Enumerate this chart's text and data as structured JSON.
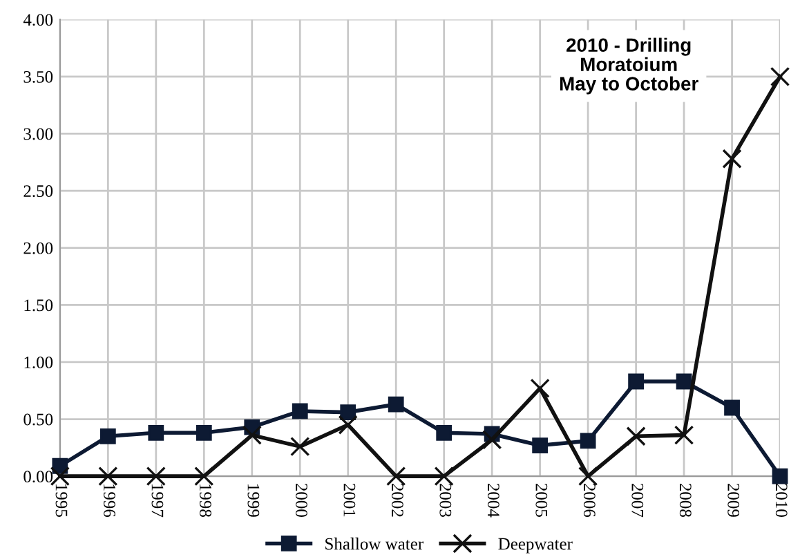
{
  "chart_data": {
    "type": "line",
    "categories": [
      "1995",
      "1996",
      "1997",
      "1998",
      "1999",
      "2000",
      "2001",
      "2002",
      "2003",
      "2004",
      "2005",
      "2006",
      "2007",
      "2008",
      "2009",
      "2010"
    ],
    "series": [
      {
        "name": "Shallow water",
        "color": "#0d1a33",
        "marker": "square",
        "values": [
          0.09,
          0.35,
          0.38,
          0.38,
          0.43,
          0.57,
          0.56,
          0.63,
          0.38,
          0.37,
          0.27,
          0.31,
          0.83,
          0.83,
          0.6,
          0.0
        ]
      },
      {
        "name": "Deepwater",
        "color": "#111111",
        "marker": "cross",
        "values": [
          0,
          0,
          0,
          0,
          0.36,
          0.26,
          0.45,
          0,
          0,
          0.32,
          0.77,
          0,
          0.35,
          0.36,
          2.78,
          3.5
        ]
      }
    ],
    "ylim": [
      0,
      4
    ],
    "yticks": [
      {
        "value": 0,
        "label": "0.00"
      },
      {
        "value": 0.5,
        "label": "0.50"
      },
      {
        "value": 1,
        "label": "1.00"
      },
      {
        "value": 1.5,
        "label": "1.50"
      },
      {
        "value": 2,
        "label": "2.00"
      },
      {
        "value": 2.5,
        "label": "2.50"
      },
      {
        "value": 3,
        "label": "3.00"
      },
      {
        "value": 3.5,
        "label": "3.50"
      },
      {
        "value": 4,
        "label": "4.00"
      }
    ],
    "grid": true,
    "legend": "bottom",
    "line_style": "solid",
    "annotations": [
      "2010 - Drilling\nMoratoium\nMay to October"
    ]
  }
}
